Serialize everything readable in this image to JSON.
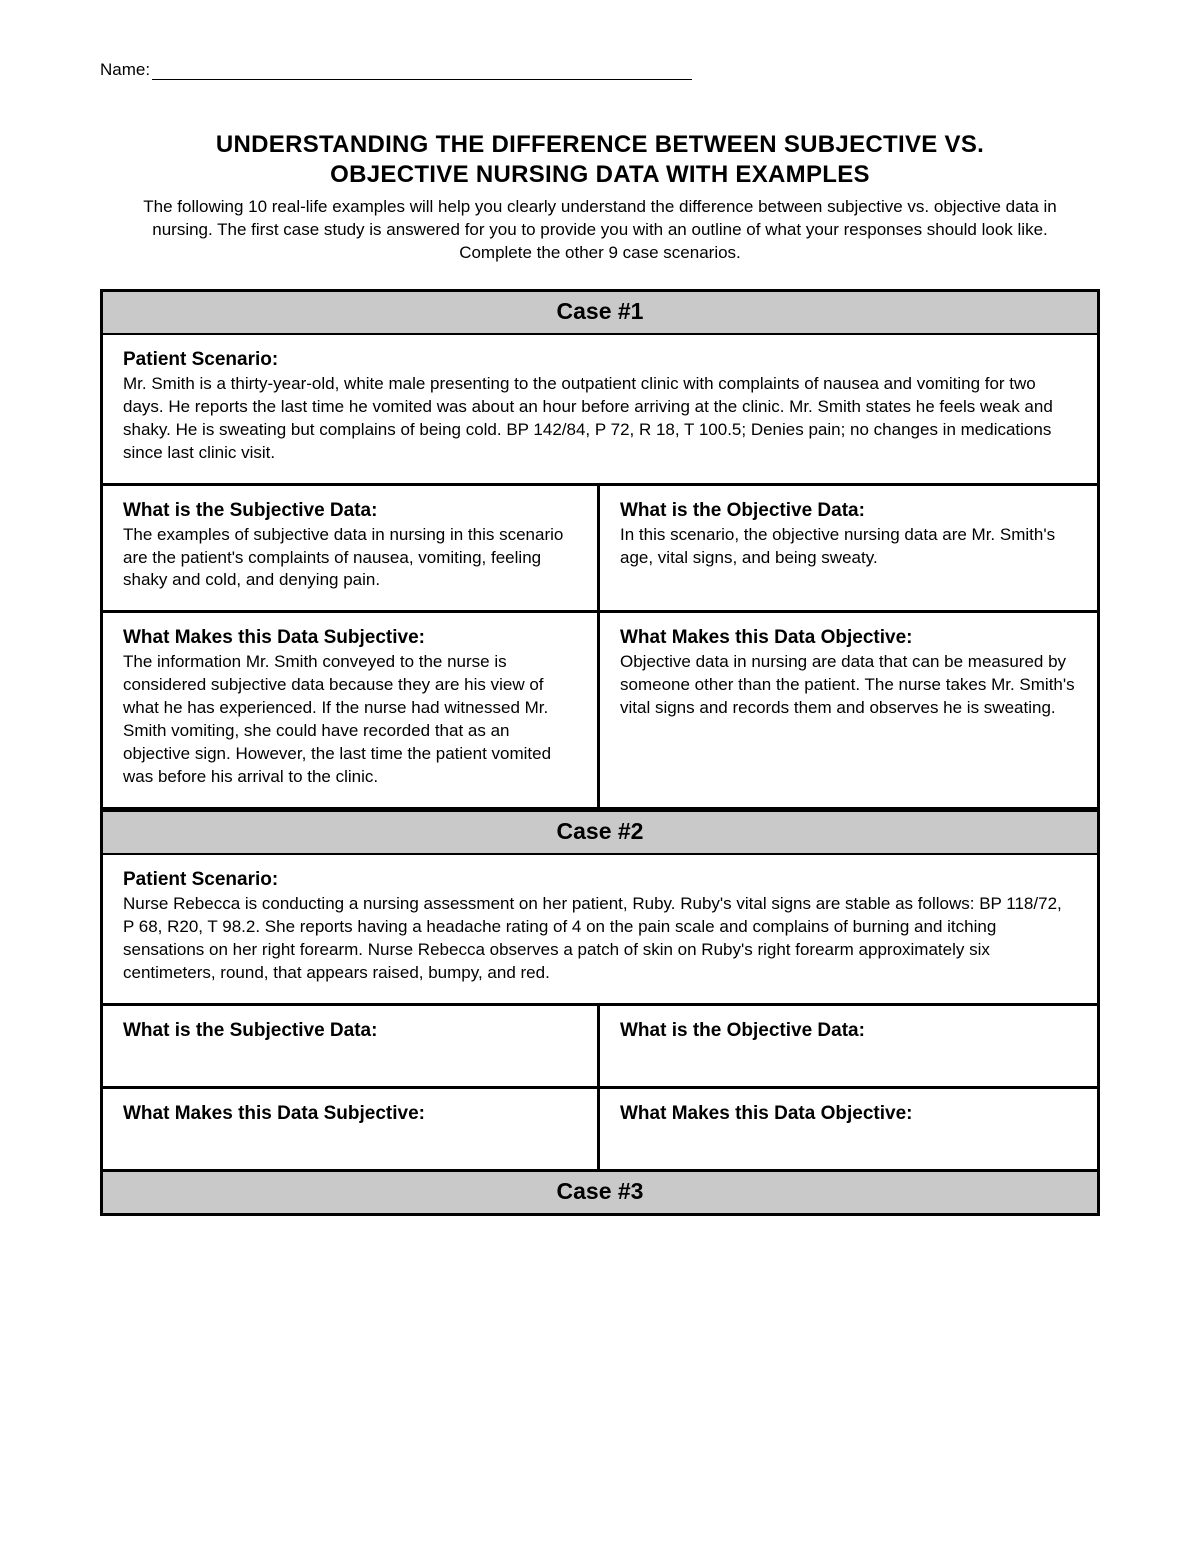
{
  "document": {
    "name_label": "Name:",
    "title_line1": "UNDERSTANDING THE DIFFERENCE BETWEEN SUBJECTIVE VS.",
    "title_line2": "OBJECTIVE NURSING DATA WITH EXAMPLES",
    "intro": "The following 10 real-life examples will help you clearly understand the difference between subjective vs. objective data in nursing.  The first case study is answered for you to provide you with an outline of what your responses should look like.  Complete the other 9 case scenarios.",
    "colors": {
      "header_bg": "#c9c9c9",
      "border": "#000000",
      "text": "#000000",
      "background": "#ffffff"
    },
    "fonts": {
      "title_size_pt": 18,
      "body_size_pt": 13,
      "label_size_pt": 14
    }
  },
  "labels": {
    "scenario": "Patient Scenario:",
    "subjective_what": "What is the Subjective Data:",
    "objective_what": "What is the Objective Data:",
    "subjective_why": "What Makes this Data Subjective:",
    "objective_why": "What Makes this Data Objective:"
  },
  "cases": [
    {
      "header": "Case #1",
      "scenario": " Mr. Smith is a thirty-year-old, white male presenting to the outpatient clinic with complaints of nausea and vomiting for two days. He reports the last time he vomited was about an hour before arriving at the clinic. Mr. Smith states he feels weak and shaky. He is sweating but complains of being cold. BP 142/84, P 72, R 18, T 100.5; Denies pain; no changes in medications since last clinic visit.",
      "subjective_what": " The examples of subjective data in nursing in this scenario are the patient's complaints of nausea, vomiting, feeling shaky and cold, and denying pain.",
      "objective_what": " In this scenario, the objective nursing data are Mr. Smith's age, vital signs, and being sweaty.",
      "subjective_why": " The information Mr. Smith conveyed to the nurse is considered subjective data because they are his view of what he has experienced. If the nurse had witnessed Mr. Smith vomiting, she could have recorded that as an objective sign. However, the last time the patient vomited was before his arrival to the clinic.",
      "objective_why": " Objective data in nursing are data that can be measured by someone other than the patient. The nurse takes Mr. Smith's vital signs and records them and observes he is sweating."
    },
    {
      "header": "Case #2",
      "scenario": " Nurse Rebecca is conducting a nursing assessment on her patient, Ruby. Ruby's vital signs are stable as follows: BP 118/72, P 68, R20, T 98.2. She reports having a headache rating of 4 on the pain scale and complains of burning and itching sensations on her right forearm. Nurse Rebecca observes a patch of skin on Ruby's right forearm approximately six centimeters, round, that appears raised, bumpy, and red.",
      "subjective_what": "",
      "objective_what": "",
      "subjective_why": "",
      "objective_why": ""
    },
    {
      "header": "Case #3"
    }
  ]
}
